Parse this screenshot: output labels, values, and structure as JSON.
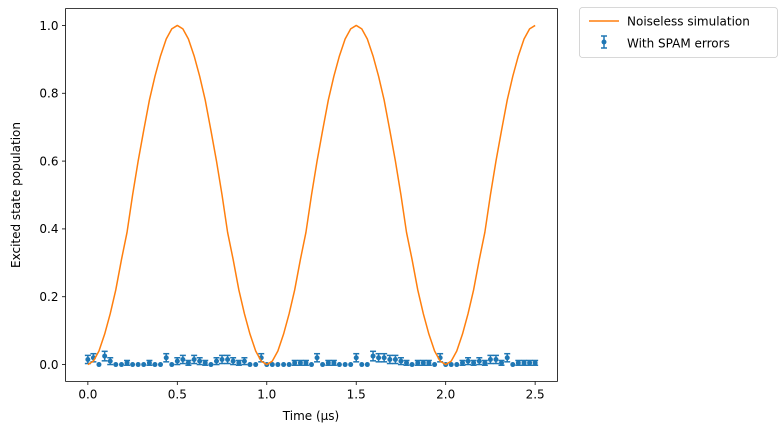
{
  "chart_data": {
    "type": "line",
    "xlabel": "Time (μs)",
    "ylabel": "Excited state population",
    "xlim": [
      -0.125,
      2.625
    ],
    "ylim": [
      -0.05,
      1.05
    ],
    "xticks": [
      0.0,
      0.5,
      1.0,
      1.5,
      2.0,
      2.5
    ],
    "xtick_labels": [
      "0.0",
      "0.5",
      "1.0",
      "1.5",
      "2.0",
      "2.5"
    ],
    "yticks": [
      0.0,
      0.2,
      0.4,
      0.6,
      0.8,
      1.0
    ],
    "ytick_labels": [
      "0.0",
      "0.2",
      "0.4",
      "0.6",
      "0.8",
      "1.0"
    ],
    "grid": false,
    "legend_position": "outside-upper-right",
    "series": [
      {
        "name": "Noiseless simulation",
        "kind": "line",
        "color": "#ff7f0e",
        "x": [
          0.0,
          0.031,
          0.062,
          0.094,
          0.125,
          0.156,
          0.188,
          0.219,
          0.25,
          0.281,
          0.312,
          0.344,
          0.375,
          0.406,
          0.438,
          0.469,
          0.5,
          0.531,
          0.562,
          0.594,
          0.625,
          0.656,
          0.688,
          0.719,
          0.75,
          0.781,
          0.812,
          0.844,
          0.875,
          0.906,
          0.938,
          0.969,
          1.0,
          1.031,
          1.062,
          1.094,
          1.125,
          1.156,
          1.188,
          1.219,
          1.25,
          1.281,
          1.312,
          1.344,
          1.375,
          1.406,
          1.438,
          1.469,
          1.5,
          1.531,
          1.562,
          1.594,
          1.625,
          1.656,
          1.688,
          1.719,
          1.75,
          1.781,
          1.812,
          1.844,
          1.875,
          1.906,
          1.938,
          1.969,
          2.0,
          2.031,
          2.062,
          2.094,
          2.125,
          2.156,
          2.188,
          2.219,
          2.25,
          2.281,
          2.312,
          2.344,
          2.375,
          2.406,
          2.438,
          2.469,
          2.5
        ],
        "y": [
          0.0,
          0.01,
          0.04,
          0.09,
          0.15,
          0.22,
          0.31,
          0.39,
          0.5,
          0.6,
          0.69,
          0.78,
          0.85,
          0.91,
          0.96,
          0.99,
          1.0,
          0.99,
          0.96,
          0.91,
          0.85,
          0.78,
          0.69,
          0.6,
          0.5,
          0.39,
          0.31,
          0.22,
          0.15,
          0.09,
          0.04,
          0.01,
          0.0,
          0.01,
          0.04,
          0.09,
          0.15,
          0.22,
          0.31,
          0.39,
          0.5,
          0.6,
          0.69,
          0.78,
          0.85,
          0.91,
          0.96,
          0.99,
          1.0,
          0.99,
          0.96,
          0.91,
          0.85,
          0.78,
          0.69,
          0.6,
          0.5,
          0.39,
          0.31,
          0.22,
          0.15,
          0.09,
          0.04,
          0.01,
          0.0,
          0.01,
          0.04,
          0.09,
          0.15,
          0.22,
          0.31,
          0.39,
          0.5,
          0.6,
          0.69,
          0.78,
          0.85,
          0.91,
          0.96,
          0.99,
          1.0
        ]
      },
      {
        "name": "With SPAM errors",
        "kind": "errorbar",
        "color": "#1f77b4",
        "x": [
          0.0,
          0.031,
          0.062,
          0.094,
          0.125,
          0.156,
          0.188,
          0.219,
          0.25,
          0.281,
          0.312,
          0.344,
          0.375,
          0.406,
          0.438,
          0.469,
          0.5,
          0.531,
          0.562,
          0.594,
          0.625,
          0.656,
          0.688,
          0.719,
          0.75,
          0.781,
          0.812,
          0.844,
          0.875,
          0.906,
          0.938,
          0.969,
          1.0,
          1.031,
          1.062,
          1.094,
          1.125,
          1.156,
          1.188,
          1.219,
          1.25,
          1.281,
          1.312,
          1.344,
          1.375,
          1.406,
          1.438,
          1.469,
          1.5,
          1.531,
          1.562,
          1.594,
          1.625,
          1.656,
          1.688,
          1.719,
          1.75,
          1.781,
          1.812,
          1.844,
          1.875,
          1.906,
          1.938,
          1.969,
          2.0,
          2.031,
          2.062,
          2.094,
          2.125,
          2.156,
          2.188,
          2.219,
          2.25,
          2.281,
          2.312,
          2.344,
          2.375,
          2.406,
          2.438,
          2.469,
          2.5
        ],
        "y": [
          0.015,
          0.02,
          0.0,
          0.025,
          0.01,
          0.0,
          0.0,
          0.005,
          0.0,
          0.0,
          0.0,
          0.005,
          0.0,
          0.0,
          0.02,
          0.0,
          0.01,
          0.015,
          0.005,
          0.015,
          0.01,
          0.005,
          0.0,
          0.01,
          0.015,
          0.015,
          0.01,
          0.005,
          0.01,
          0.0,
          0.0,
          0.02,
          0.0,
          0.0,
          0.0,
          0.0,
          0.0,
          0.005,
          0.005,
          0.005,
          0.0,
          0.02,
          0.0,
          0.005,
          0.005,
          0.0,
          0.0,
          0.0,
          0.02,
          0.0,
          0.0,
          0.025,
          0.02,
          0.02,
          0.015,
          0.015,
          0.01,
          0.005,
          0.0,
          0.005,
          0.005,
          0.005,
          0.0,
          0.02,
          0.0,
          0.0,
          0.0,
          0.005,
          0.01,
          0.005,
          0.01,
          0.005,
          0.015,
          0.015,
          0.005,
          0.02,
          0.0,
          0.005,
          0.005,
          0.005,
          0.005
        ],
        "err": [
          0.012,
          0.012,
          0.0,
          0.014,
          0.01,
          0.0,
          0.0,
          0.007,
          0.0,
          0.0,
          0.0,
          0.007,
          0.0,
          0.0,
          0.012,
          0.0,
          0.01,
          0.012,
          0.007,
          0.012,
          0.01,
          0.007,
          0.0,
          0.01,
          0.012,
          0.012,
          0.01,
          0.007,
          0.01,
          0.0,
          0.0,
          0.012,
          0.0,
          0.0,
          0.0,
          0.0,
          0.0,
          0.007,
          0.007,
          0.007,
          0.0,
          0.012,
          0.0,
          0.007,
          0.007,
          0.0,
          0.0,
          0.0,
          0.012,
          0.0,
          0.0,
          0.014,
          0.012,
          0.012,
          0.012,
          0.012,
          0.01,
          0.007,
          0.0,
          0.007,
          0.007,
          0.007,
          0.0,
          0.012,
          0.0,
          0.0,
          0.0,
          0.007,
          0.01,
          0.007,
          0.01,
          0.007,
          0.012,
          0.012,
          0.007,
          0.012,
          0.0,
          0.007,
          0.007,
          0.007,
          0.007
        ]
      }
    ]
  }
}
